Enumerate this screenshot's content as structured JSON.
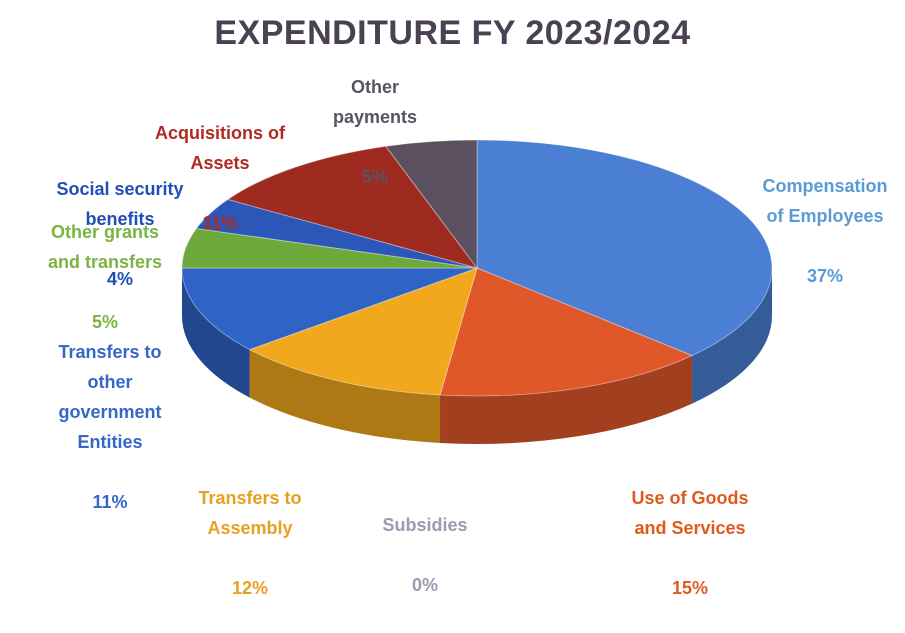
{
  "chart_data": {
    "type": "pie",
    "title": "EXPENDITURE  FY 2023/2024",
    "slices": [
      {
        "label": "Compensation\nof Employees",
        "value": 37,
        "pct_label": "37%",
        "color": "#4a7fd4",
        "label_color": "#5b9bd5"
      },
      {
        "label": "Use of Goods\nand Services",
        "value": 15,
        "pct_label": "15%",
        "color": "#e0572a",
        "label_color": "#e05a1f"
      },
      {
        "label": "Subsidies",
        "value": 0,
        "pct_label": "0%",
        "color": "#a5a5a5",
        "label_color": "#9a9ab0"
      },
      {
        "label": "Transfers to\nAssembly",
        "value": 12,
        "pct_label": "12%",
        "color": "#f2a81d",
        "label_color": "#e9a020"
      },
      {
        "label": "Transfers to\nother\ngovernment\nEntities",
        "value": 11,
        "pct_label": "11%",
        "color": "#2f63c6",
        "label_color": "#3567c9"
      },
      {
        "label": "Other grants\nand transfers",
        "value": 5,
        "pct_label": "5%",
        "color": "#6ea83a",
        "label_color": "#7cb342"
      },
      {
        "label": "Social security\nbenefits",
        "value": 4,
        "pct_label": "4%",
        "color": "#2a57b8",
        "label_color": "#1f4fb5"
      },
      {
        "label": "Acquisitions of\nAssets",
        "value": 11,
        "pct_label": "11%",
        "color": "#9e2a20",
        "label_color": "#b02a1f"
      },
      {
        "label": "Other\npayments",
        "value": 5,
        "pct_label": "5%",
        "color": "#5a5060",
        "label_color": "#5a5263"
      }
    ]
  }
}
